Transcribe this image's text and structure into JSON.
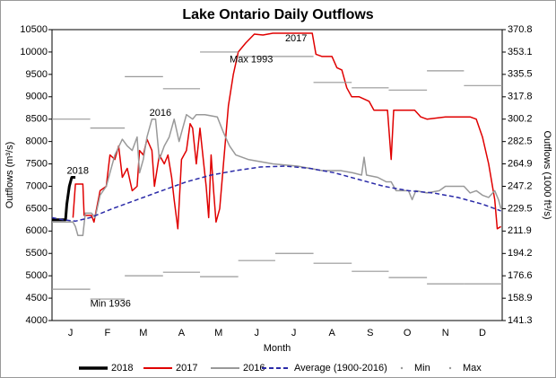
{
  "chart_data": {
    "type": "line",
    "title": "Lake Ontario Daily Outflows",
    "x_label": "Month",
    "y_label": "Outflows (m³/s)",
    "y2_label": "Outflows (1000 ft³/s)",
    "xlim": [
      1,
      366
    ],
    "xticks": [
      {
        "value": 16,
        "label": "J"
      },
      {
        "value": 46,
        "label": "F"
      },
      {
        "value": 75,
        "label": "M"
      },
      {
        "value": 106,
        "label": "A"
      },
      {
        "value": 136,
        "label": "M"
      },
      {
        "value": 167,
        "label": "J"
      },
      {
        "value": 197,
        "label": "J"
      },
      {
        "value": 228,
        "label": "A"
      },
      {
        "value": 259,
        "label": "S"
      },
      {
        "value": 289,
        "label": "O"
      },
      {
        "value": 320,
        "label": "N"
      },
      {
        "value": 350,
        "label": "D"
      }
    ],
    "ylim": [
      4000,
      10500
    ],
    "yticks": [
      4000,
      4500,
      5000,
      5500,
      6000,
      6500,
      7000,
      7500,
      8000,
      8500,
      9000,
      9500,
      10000,
      10500
    ],
    "y2lim": [
      141.3,
      370.8
    ],
    "y2ticks": [
      141.3,
      158.9,
      176.6,
      194.2,
      211.9,
      229.5,
      247.2,
      264.9,
      282.5,
      300.2,
      317.8,
      335.5,
      353.1,
      370.8
    ],
    "grid": false,
    "legend": "bottom",
    "series": [
      {
        "name": "2018",
        "color": "#000000",
        "style": "solid",
        "width": 3,
        "x": [
          1,
          12,
          13,
          15,
          17,
          20
        ],
        "values": [
          6250,
          6250,
          6600,
          7000,
          7200,
          7200
        ]
      },
      {
        "name": "2017",
        "color": "#e00000",
        "style": "solid",
        "width": 1.5,
        "x": [
          18,
          20,
          26,
          27,
          33,
          35,
          40,
          45,
          48,
          52,
          55,
          58,
          62,
          66,
          70,
          72,
          75,
          78,
          82,
          84,
          88,
          92,
          95,
          98,
          100,
          103,
          106,
          110,
          113,
          115,
          118,
          121,
          124,
          126,
          128,
          130,
          132,
          134,
          137,
          140,
          144,
          148,
          152,
          158,
          165,
          172,
          180,
          200,
          212,
          215,
          220,
          228,
          232,
          236,
          240,
          244,
          250,
          258,
          262,
          273,
          276,
          278,
          295,
          300,
          305,
          320,
          340,
          345,
          350,
          355,
          360,
          362,
          365
        ],
        "values": [
          6300,
          7050,
          7050,
          6350,
          6350,
          6200,
          6900,
          7000,
          7700,
          7600,
          7900,
          7200,
          7400,
          6900,
          7000,
          7800,
          7700,
          8050,
          7800,
          7000,
          7700,
          7500,
          7700,
          7200,
          6700,
          6050,
          7600,
          7800,
          8400,
          8300,
          7500,
          8300,
          7500,
          7000,
          6300,
          7700,
          6900,
          6200,
          6500,
          7500,
          8800,
          9500,
          10000,
          10200,
          10400,
          10380,
          10420,
          10420,
          10420,
          9950,
          9900,
          9900,
          9650,
          9600,
          9200,
          9000,
          9000,
          8900,
          8700,
          8700,
          7600,
          8700,
          8700,
          8550,
          8500,
          8550,
          8550,
          8500,
          8100,
          7500,
          6700,
          6050,
          6100
        ]
      },
      {
        "name": "2016",
        "color": "#999999",
        "style": "solid",
        "width": 1.5,
        "x": [
          1,
          18,
          20,
          22,
          26,
          28,
          33,
          36,
          40,
          45,
          48,
          52,
          58,
          62,
          66,
          70,
          72,
          75,
          78,
          82,
          85,
          88,
          92,
          96,
          100,
          104,
          110,
          115,
          118,
          125,
          135,
          140,
          145,
          150,
          160,
          180,
          200,
          220,
          235,
          245,
          252,
          254,
          256,
          265,
          272,
          276,
          280,
          290,
          293,
          296,
          305,
          315,
          320,
          335,
          340,
          345,
          350,
          355,
          360,
          363,
          365
        ],
        "values": [
          6200,
          6200,
          6100,
          5900,
          5900,
          6400,
          6400,
          6300,
          6800,
          7000,
          7300,
          7700,
          8050,
          7900,
          7800,
          8100,
          7300,
          7600,
          8100,
          8500,
          8500,
          7600,
          7900,
          8100,
          8500,
          8000,
          8600,
          8500,
          8600,
          8600,
          8550,
          8200,
          7900,
          7700,
          7600,
          7500,
          7450,
          7350,
          7350,
          7300,
          7250,
          7650,
          7250,
          7200,
          7100,
          7100,
          6900,
          6900,
          6700,
          6900,
          6850,
          6900,
          7000,
          7000,
          6850,
          6900,
          6800,
          6750,
          6900,
          6700,
          6500
        ]
      },
      {
        "name": "Average (1900-2016)",
        "color": "#2a2aa8",
        "style": "dashed",
        "width": 1.5,
        "x": [
          1,
          10,
          20,
          32,
          50,
          70,
          90,
          110,
          130,
          150,
          170,
          190,
          210,
          230,
          250,
          270,
          290,
          310,
          330,
          350,
          365
        ],
        "values": [
          6300,
          6250,
          6220,
          6300,
          6500,
          6700,
          6900,
          7100,
          7250,
          7350,
          7430,
          7450,
          7400,
          7300,
          7150,
          7000,
          6900,
          6850,
          6750,
          6600,
          6450
        ]
      },
      {
        "name": "Min",
        "color": "#999999",
        "style": "steps",
        "x": [
          1,
          32,
          60,
          91,
          121,
          152,
          182,
          213,
          244,
          274,
          305,
          335
        ],
        "values": [
          4700,
          4480,
          5000,
          5080,
          4980,
          5340,
          5500,
          5280,
          5100,
          4960,
          4820,
          4820
        ]
      },
      {
        "name": "Max",
        "color": "#999999",
        "style": "steps",
        "x": [
          1,
          32,
          60,
          91,
          121,
          152,
          182,
          213,
          244,
          274,
          305,
          335
        ],
        "values": [
          8500,
          8300,
          9450,
          9180,
          10000,
          9900,
          9900,
          9320,
          9200,
          9150,
          9580,
          9250
        ]
      }
    ],
    "annotations": [
      {
        "text": "2018",
        "x": 13,
        "y": 7340,
        "color": "#000000"
      },
      {
        "text": "2017",
        "x": 190,
        "y": 10300,
        "color": "#e00000"
      },
      {
        "text": "2016",
        "x": 80,
        "y": 8630,
        "color": "#999999"
      },
      {
        "text": "Max 1993",
        "x": 145,
        "y": 9830,
        "color": "#999999"
      },
      {
        "text": "Min 1936",
        "x": 32,
        "y": 4370,
        "color": "#999999"
      }
    ]
  }
}
